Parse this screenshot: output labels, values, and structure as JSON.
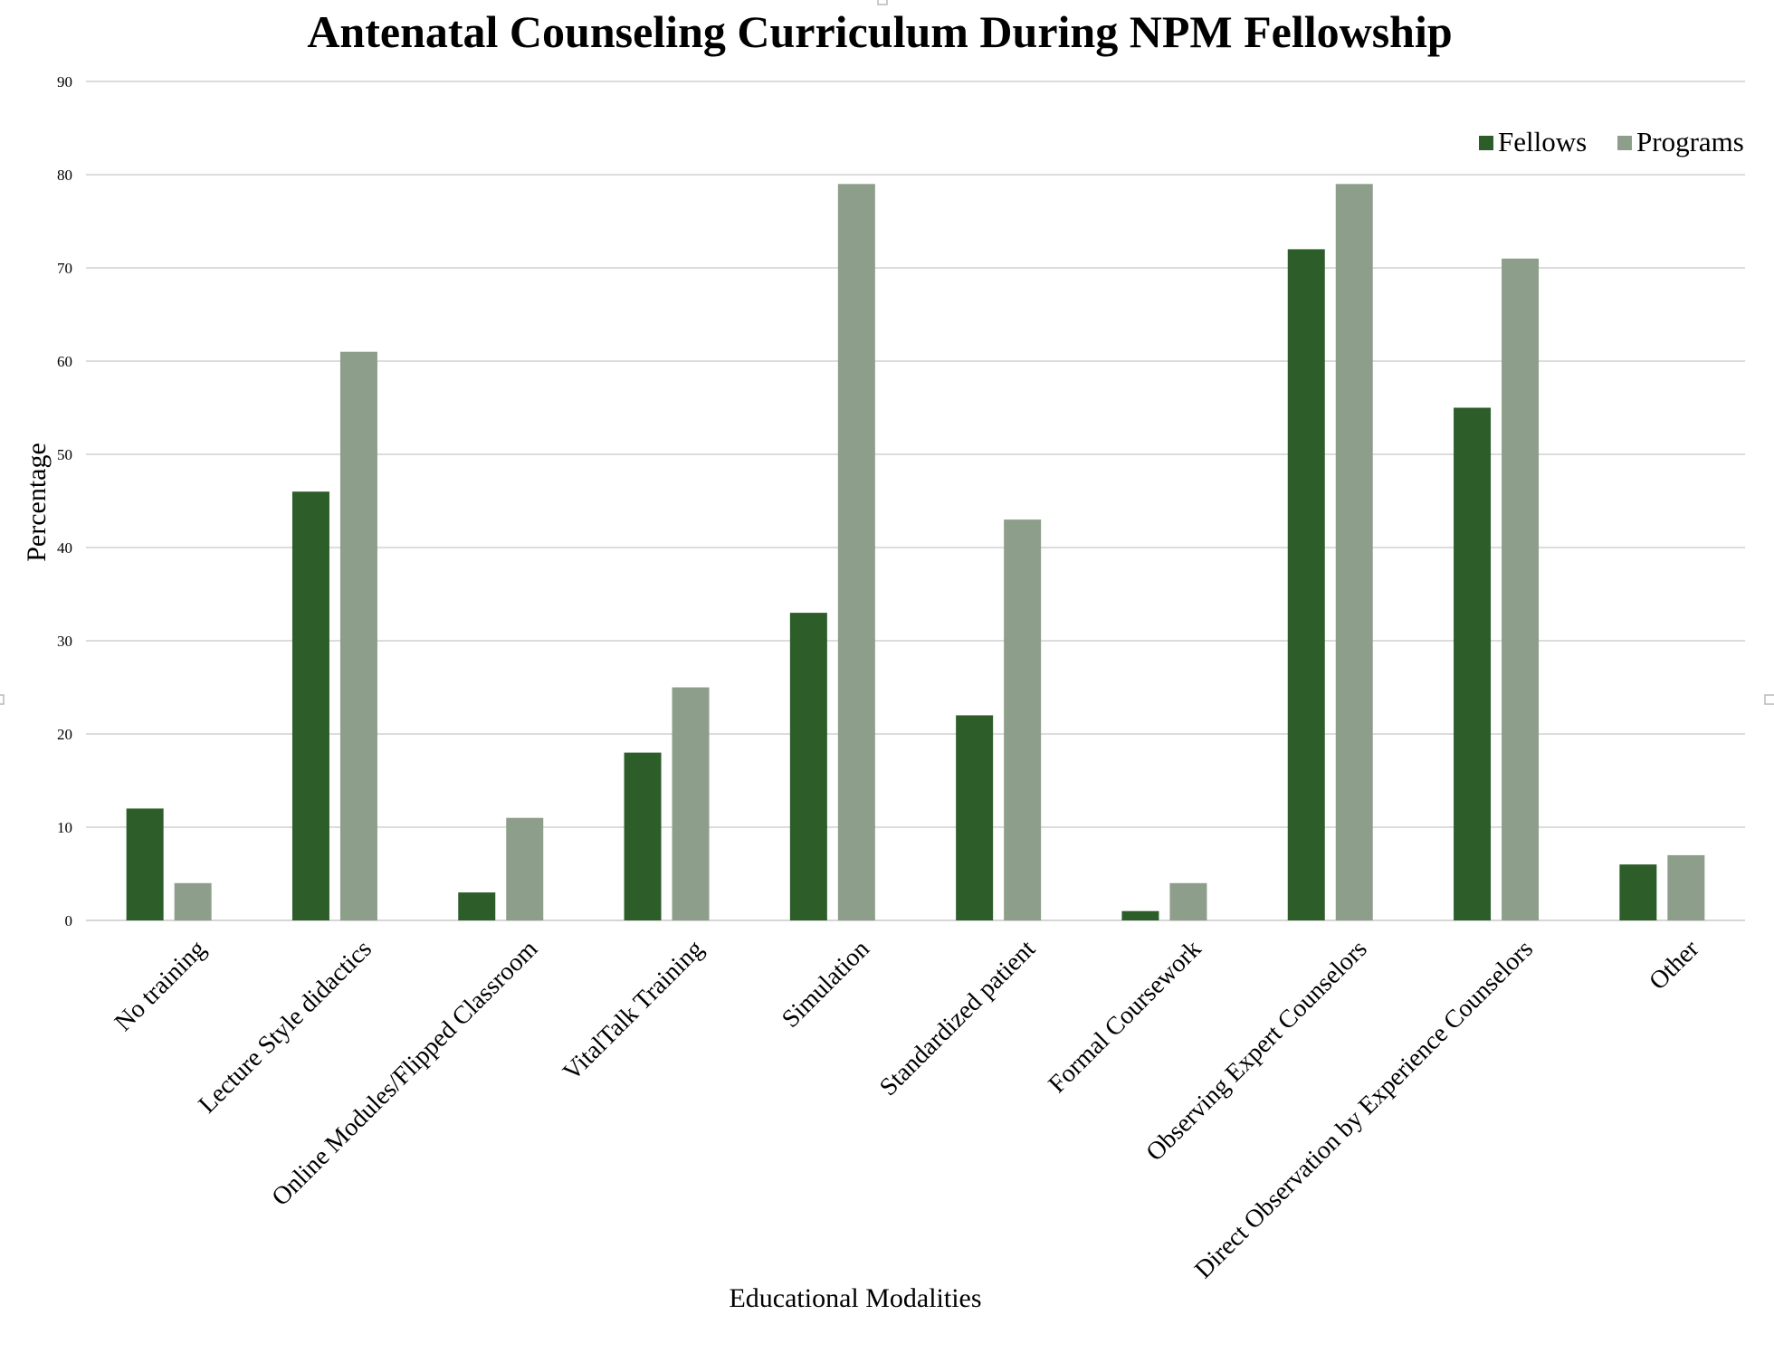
{
  "chart_data": {
    "type": "bar",
    "title": "Antenatal Counseling Curriculum During NPM Fellowship",
    "xlabel": "Educational Modalities",
    "ylabel": "Percentage",
    "ylim": [
      0,
      90
    ],
    "yticks": [
      0,
      10,
      20,
      30,
      40,
      50,
      60,
      70,
      80,
      90
    ],
    "grid": true,
    "legend_position": "top-right",
    "categories": [
      "No training",
      "Lecture Style didactics",
      "Online Modules/Flipped Classroom",
      "VitalTalk Training",
      "Simulation",
      "Standardized patient",
      "Formal Coursework",
      "Observing Expert Counselors",
      "Direct Observation by Experience Counselors",
      "Other"
    ],
    "series": [
      {
        "name": "Fellows",
        "color": "#2d5e2a",
        "values": [
          12,
          46,
          3,
          18,
          33,
          22,
          1,
          72,
          55,
          6
        ]
      },
      {
        "name": "Programs",
        "color": "#8d9f8a",
        "values": [
          4,
          61,
          11,
          25,
          79,
          43,
          4,
          79,
          71,
          7
        ]
      }
    ]
  }
}
